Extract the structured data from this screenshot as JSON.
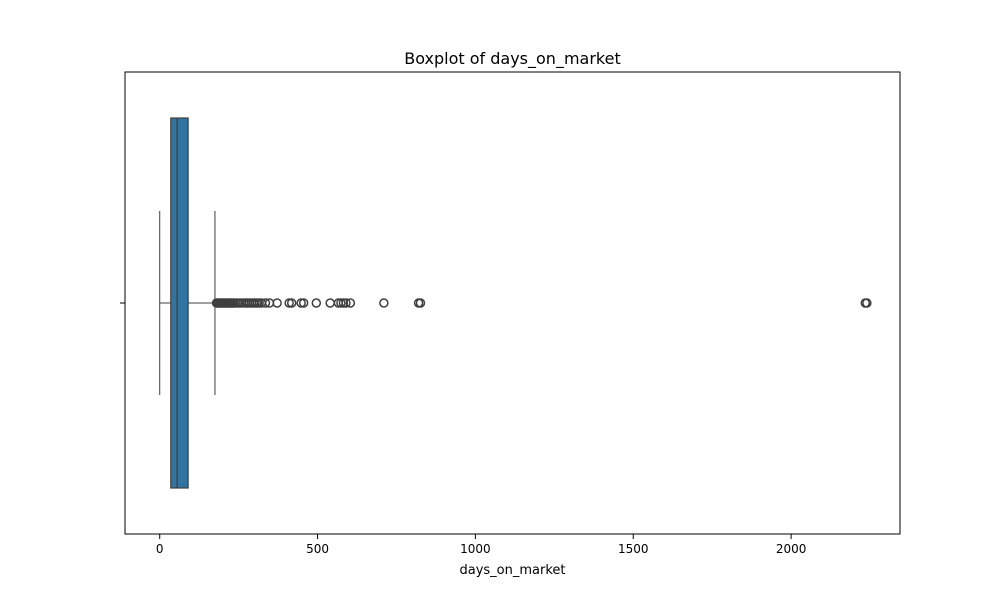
{
  "chart_data": {
    "type": "boxplot",
    "title": "Boxplot of days_on_market",
    "xlabel": "days_on_market",
    "ylabel": "",
    "orientation": "horizontal",
    "xlim": [
      -110,
      2345
    ],
    "xticks": [
      0,
      500,
      1000,
      1500,
      2000
    ],
    "grid": false,
    "box_color": "#3274a1",
    "line_color": "#3f3f3f",
    "box": {
      "whisker_low": 0,
      "q1": 35,
      "median": 55,
      "q3": 90,
      "whisker_high": 175
    },
    "outliers": [
      180,
      184,
      188,
      192,
      196,
      200,
      204,
      208,
      212,
      216,
      220,
      224,
      228,
      232,
      236,
      242,
      250,
      258,
      266,
      272,
      278,
      284,
      290,
      296,
      302,
      308,
      315,
      322,
      335,
      348,
      372,
      410,
      418,
      448,
      456,
      496,
      540,
      566,
      574,
      582,
      590,
      604,
      710,
      820,
      826,
      2235,
      2240
    ]
  }
}
